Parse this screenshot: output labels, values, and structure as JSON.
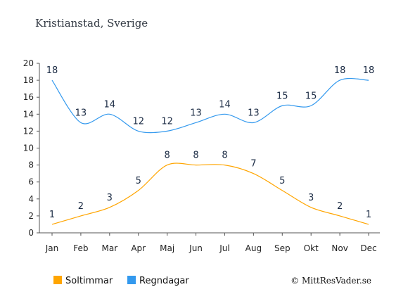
{
  "chart_data": {
    "type": "line",
    "title": "Kristianstad, Sverige",
    "categories": [
      "Jan",
      "Feb",
      "Mar",
      "Apr",
      "Maj",
      "Jun",
      "Jul",
      "Aug",
      "Sep",
      "Okt",
      "Nov",
      "Dec"
    ],
    "ylim": [
      0,
      20
    ],
    "yticks": [
      "0",
      "2",
      "4",
      "6",
      "8",
      "10",
      "12",
      "14",
      "16",
      "18",
      "20"
    ],
    "grid": false,
    "legend_position": "bottom-left",
    "series": [
      {
        "name": "Soltimmar",
        "color": "#ffa500",
        "values": [
          1,
          2,
          3,
          5,
          8,
          8,
          8,
          7,
          5,
          3,
          2,
          1
        ]
      },
      {
        "name": "Regndagar",
        "color": "#3399ee",
        "values": [
          18,
          13,
          14,
          12,
          12,
          13,
          14,
          13,
          15,
          15,
          18,
          18
        ]
      }
    ],
    "credit": "© MittResVader.se"
  }
}
